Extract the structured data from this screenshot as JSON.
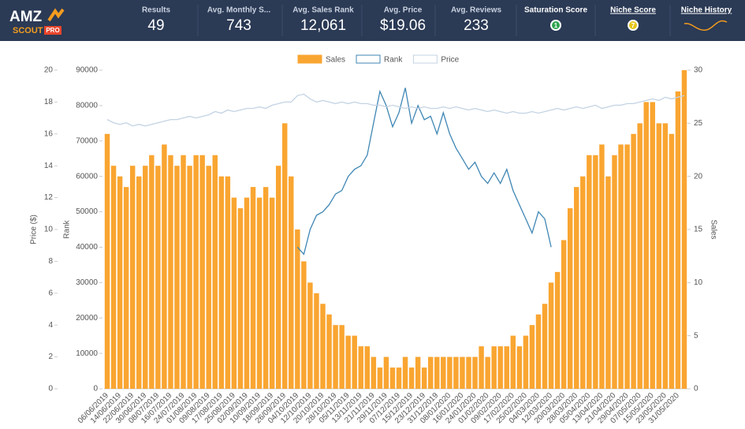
{
  "header": {
    "logo": {
      "brand": "AMZ",
      "sub": "SCOUT",
      "tier": "PRO"
    },
    "stats": [
      {
        "label": "Results",
        "value": "49"
      },
      {
        "label": "Avg. Monthly S...",
        "value": "743"
      },
      {
        "label": "Avg. Sales Rank",
        "value": "12,061"
      },
      {
        "label": "Avg. Price",
        "value": "$19.06"
      },
      {
        "label": "Avg. Reviews",
        "value": "233"
      }
    ],
    "saturation_score": {
      "label": "Saturation Score",
      "value": "1"
    },
    "niche_score": {
      "label": "Niche Score",
      "value": "7"
    },
    "niche_history": {
      "label": "Niche History"
    }
  },
  "chart_data": {
    "type": "combo",
    "categories": [
      "06/06/2019",
      null,
      "14/06/2019",
      null,
      "22/06/2019",
      null,
      "30/06/2019",
      null,
      "08/07/2019",
      null,
      "16/07/2019",
      null,
      "24/07/2019",
      null,
      "01/08/2019",
      null,
      "09/08/2019",
      null,
      "17/08/2019",
      null,
      "25/08/2019",
      null,
      "02/09/2019",
      null,
      "10/09/2019",
      null,
      "18/09/2019",
      null,
      "26/09/2019",
      null,
      "04/10/2019",
      null,
      "12/10/2019",
      null,
      "20/10/2019",
      null,
      "28/10/2019",
      null,
      "05/11/2019",
      null,
      "13/11/2019",
      null,
      "21/11/2019",
      null,
      "29/11/2019",
      null,
      "07/12/2019",
      null,
      "15/12/2019",
      null,
      "23/12/2019",
      null,
      "31/12/2019",
      null,
      "08/01/2020",
      null,
      "16/01/2020",
      null,
      "24/01/2020",
      null,
      "01/02/2020",
      null,
      "09/02/2020",
      null,
      "17/02/2020",
      null,
      "25/02/2020",
      null,
      "04/03/2020",
      null,
      "12/03/2020",
      null,
      "20/03/2020",
      null,
      "28/03/2020",
      null,
      "05/04/2020",
      null,
      "13/04/2020",
      null,
      "21/04/2020",
      null,
      "29/04/2020",
      null,
      "07/05/2020",
      null,
      "15/05/2020",
      null,
      "23/05/2020",
      null,
      "31/05/2020",
      null
    ],
    "series": [
      {
        "name": "Sales",
        "type": "bar",
        "axis": "y2",
        "color": "#f9a531",
        "values": [
          24,
          21,
          20,
          19,
          21,
          20,
          21,
          22,
          21,
          23,
          22,
          21,
          22,
          21,
          22,
          22,
          21,
          22,
          20,
          20,
          18,
          17,
          18,
          19,
          18,
          19,
          18,
          21,
          25,
          20,
          15,
          12,
          10,
          9,
          8,
          7,
          6,
          6,
          5,
          5,
          4,
          4,
          3,
          2,
          3,
          2,
          2,
          3,
          2,
          3,
          2,
          3,
          3,
          3,
          3,
          3,
          3,
          3,
          3,
          4,
          3,
          4,
          4,
          4,
          5,
          4,
          5,
          6,
          7,
          8,
          10,
          11,
          14,
          17,
          19,
          20,
          22,
          22,
          23,
          20,
          22,
          23,
          23,
          24,
          25,
          27,
          27,
          25,
          25,
          24,
          28,
          30
        ]
      },
      {
        "name": "Rank",
        "type": "line",
        "axis": "y",
        "color": "#3f86b4",
        "values": [
          null,
          null,
          null,
          null,
          null,
          null,
          null,
          null,
          null,
          null,
          null,
          null,
          null,
          null,
          null,
          null,
          null,
          null,
          null,
          null,
          null,
          null,
          null,
          null,
          null,
          null,
          null,
          null,
          null,
          null,
          40000,
          38000,
          45000,
          49000,
          50000,
          52000,
          55000,
          56000,
          60000,
          62000,
          63000,
          66000,
          75000,
          84000,
          80000,
          74000,
          78000,
          85000,
          75000,
          80000,
          76000,
          77000,
          72000,
          78000,
          72000,
          68000,
          65000,
          62000,
          64000,
          60000,
          58000,
          61000,
          58000,
          62000,
          56000,
          52000,
          48000,
          44000,
          50000,
          48000,
          40000,
          null,
          null,
          null,
          null,
          null,
          null,
          null,
          null,
          null,
          null,
          null,
          null,
          null,
          null,
          null,
          null,
          null,
          null,
          null,
          null,
          null
        ]
      },
      {
        "name": "Price",
        "type": "line",
        "axis": "y3",
        "color": "#c3d3e3",
        "values": [
          16.9,
          16.7,
          16.6,
          16.7,
          16.5,
          16.6,
          16.5,
          16.6,
          16.7,
          16.8,
          16.9,
          16.9,
          17.0,
          17.1,
          17.0,
          17.1,
          17.2,
          17.4,
          17.3,
          17.5,
          17.4,
          17.5,
          17.6,
          17.6,
          17.7,
          17.6,
          17.8,
          17.9,
          18.0,
          18.0,
          18.4,
          18.5,
          18.2,
          18.0,
          18.1,
          18.0,
          17.9,
          18.0,
          17.9,
          18.0,
          17.9,
          17.9,
          17.8,
          17.8,
          17.7,
          17.8,
          17.7,
          17.6,
          17.7,
          17.6,
          17.7,
          17.6,
          17.6,
          17.7,
          17.6,
          17.7,
          17.6,
          17.5,
          17.6,
          17.5,
          17.4,
          17.5,
          17.4,
          17.3,
          17.4,
          17.3,
          17.3,
          17.4,
          17.3,
          17.4,
          17.5,
          17.6,
          17.5,
          17.6,
          17.7,
          17.6,
          17.7,
          17.8,
          17.6,
          17.7,
          17.8,
          17.8,
          17.9,
          17.9,
          18.0,
          18.1,
          18.2,
          18.1,
          18.3,
          18.2,
          18.3,
          18.4
        ]
      }
    ],
    "ylabel": "Rank",
    "ylim": [
      0,
      90000
    ],
    "yticks": [
      0,
      10000,
      20000,
      30000,
      40000,
      50000,
      60000,
      70000,
      80000,
      90000
    ],
    "y2label": "Sales",
    "y2lim": [
      0,
      30
    ],
    "y2ticks": [
      0,
      5,
      10,
      15,
      20,
      25,
      30
    ],
    "y3label": "Price ($)",
    "y3lim": [
      0,
      20
    ],
    "y3ticks": [
      0,
      2,
      4,
      6,
      8,
      10,
      12,
      14,
      16,
      18,
      20
    ],
    "legend": "top"
  }
}
